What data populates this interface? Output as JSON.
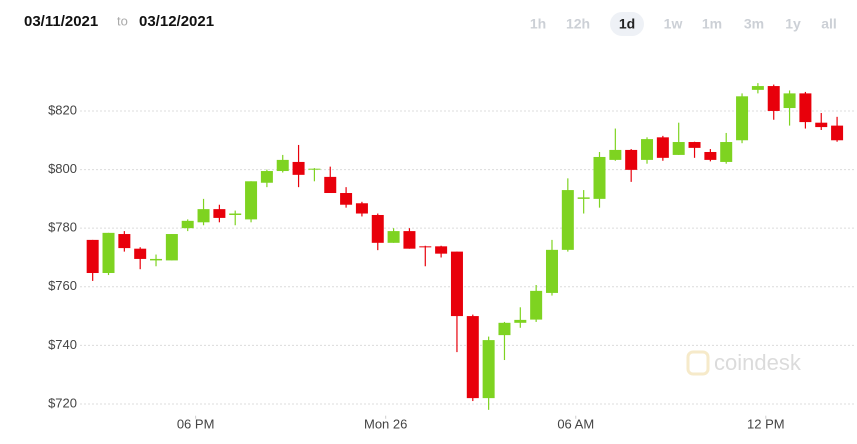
{
  "header": {
    "from": "03/11/2021",
    "to_word": "to",
    "to": "03/12/2021",
    "ranges": [
      "1h",
      "12h",
      "1d",
      "1w",
      "1m",
      "3m",
      "1y",
      "all"
    ],
    "selected_range_index": 2
  },
  "watermark": "coindesk",
  "chart_data": {
    "type": "candlestick",
    "x": [
      14.75,
      15.25,
      15.75,
      16.25,
      16.75,
      17.25,
      17.75,
      18.25,
      18.75,
      19.25,
      19.75,
      20.25,
      20.75,
      21.25,
      21.75,
      22.25,
      22.75,
      23.25,
      23.75,
      24.25,
      24.75,
      25.25,
      25.75,
      26.25,
      26.75,
      27.25,
      27.75,
      28.25,
      28.75,
      29.25,
      29.75,
      30.25,
      30.75,
      31.25,
      31.75,
      32.25,
      32.75,
      33.25,
      33.75,
      34.25,
      34.75,
      35.25,
      35.75,
      36.25,
      36.75,
      37.25,
      37.75,
      38.25
    ],
    "open": [
      776,
      764.7,
      778,
      773,
      769,
      769,
      780,
      782,
      786.5,
      784.5,
      783,
      795.5,
      799.5,
      802.6,
      800,
      797.5,
      792,
      788.5,
      784.5,
      775,
      779,
      773.8,
      773.8,
      772,
      750,
      722,
      743.5,
      747.7,
      748.8,
      757.9,
      772.6,
      790,
      790,
      803.3,
      806.7,
      803.3,
      811,
      805,
      809.4,
      806,
      802.6,
      810,
      827.2,
      828.5,
      821,
      826,
      816,
      815
    ],
    "high": [
      776,
      778.4,
      779,
      773.5,
      771,
      778,
      783,
      790,
      788,
      786,
      796,
      800,
      805,
      808.4,
      800.5,
      801,
      794,
      789,
      785,
      780,
      780,
      774,
      774,
      772,
      750.5,
      743,
      748,
      753,
      760.6,
      776,
      797,
      793,
      806,
      814,
      807,
      811,
      811.5,
      816,
      809.5,
      807,
      812.5,
      826,
      829.5,
      829,
      827,
      826.5,
      819.3,
      818
    ],
    "low": [
      762,
      764,
      772,
      766,
      767,
      769,
      779,
      781,
      782,
      781,
      782,
      794,
      799,
      794,
      796,
      792,
      787,
      784,
      772.5,
      775,
      773,
      767,
      770,
      737.7,
      721,
      718,
      735,
      746,
      748,
      757,
      772,
      785,
      787,
      803,
      795.8,
      802,
      803,
      805,
      804,
      802.8,
      802,
      809,
      826,
      817,
      815,
      814,
      813.5,
      809.5
    ],
    "close": [
      764.7,
      778.4,
      773.2,
      769.5,
      769.5,
      778,
      782.5,
      786.5,
      783.5,
      785,
      796,
      799.5,
      803.3,
      798.2,
      800.3,
      792,
      788,
      785,
      775,
      779,
      773,
      773.5,
      771.3,
      750,
      722,
      741.8,
      747.7,
      748.7,
      758.6,
      772.6,
      793,
      790.5,
      804.3,
      806.7,
      799.9,
      810.4,
      804,
      809.4,
      807.4,
      803.3,
      809.4,
      825,
      828.5,
      820,
      826,
      816.2,
      814.5,
      810
    ],
    "up_color": "#7ed321",
    "down_color": "#e8000b",
    "xlim": [
      14.35,
      38.5
    ],
    "xticks": [
      {
        "value": 18,
        "label": "06 PM"
      },
      {
        "value": 24,
        "label": "Mon 26"
      },
      {
        "value": 30,
        "label": "06 AM"
      },
      {
        "value": 36,
        "label": "12 PM"
      }
    ],
    "ylim": [
      716,
      842
    ],
    "yticks": [
      {
        "value": 720,
        "label": "$720"
      },
      {
        "value": 740,
        "label": "$740"
      },
      {
        "value": 760,
        "label": "$760"
      },
      {
        "value": 780,
        "label": "$780"
      },
      {
        "value": 800,
        "label": "$800"
      },
      {
        "value": 820,
        "label": "$820"
      }
    ],
    "grid": true
  }
}
